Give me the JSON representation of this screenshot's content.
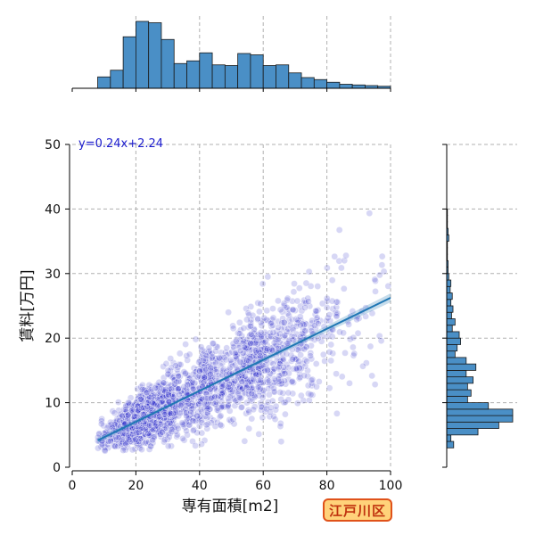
{
  "chart_data": {
    "type": "scatter",
    "title": "",
    "xlabel": "専有面積[m2]",
    "ylabel": "賃料[万円]",
    "xlim": [
      0,
      100
    ],
    "ylim": [
      0,
      50
    ],
    "x_ticks": [
      0,
      20,
      40,
      60,
      80,
      100
    ],
    "y_ticks": [
      0,
      10,
      20,
      30,
      40,
      50
    ],
    "grid": true,
    "regression": {
      "slope": 0.24,
      "intercept": 2.24,
      "x_range": [
        8,
        100
      ],
      "label": "y=0.24x+2.24"
    },
    "point_color": "#2020c8",
    "line_color": "#1f77b4",
    "hist_color": "#4a8fc6",
    "point_count_estimate": 2200,
    "x_marginal_histogram": {
      "bin_edges": [
        0,
        4,
        8,
        12,
        16,
        20,
        24,
        28,
        32,
        36,
        40,
        44,
        48,
        52,
        56,
        60,
        64,
        68,
        72,
        76,
        80,
        84,
        88,
        92,
        96,
        100
      ],
      "counts": [
        0,
        0,
        17,
        27,
        77,
        100,
        98,
        73,
        37,
        41,
        53,
        35,
        34,
        52,
        50,
        34,
        35,
        23,
        16,
        13,
        9,
        6,
        5,
        4,
        3
      ]
    },
    "y_marginal_histogram": {
      "bin_edges": [
        3,
        4,
        5,
        6,
        7,
        8,
        9,
        10,
        11,
        12,
        13,
        14,
        15,
        16,
        17,
        18,
        19,
        20,
        21,
        22,
        23,
        24,
        25,
        26,
        27,
        28,
        29,
        30,
        31,
        32,
        33,
        34,
        35,
        36,
        37,
        38,
        39,
        40
      ],
      "counts": [
        10,
        6,
        45,
        75,
        95,
        95,
        60,
        30,
        35,
        30,
        38,
        28,
        42,
        28,
        12,
        15,
        20,
        18,
        8,
        12,
        7,
        9,
        6,
        8,
        5,
        6,
        3,
        2,
        2,
        1,
        1,
        1,
        3,
        2,
        1,
        1,
        1
      ]
    },
    "badge": "江戸川区"
  }
}
